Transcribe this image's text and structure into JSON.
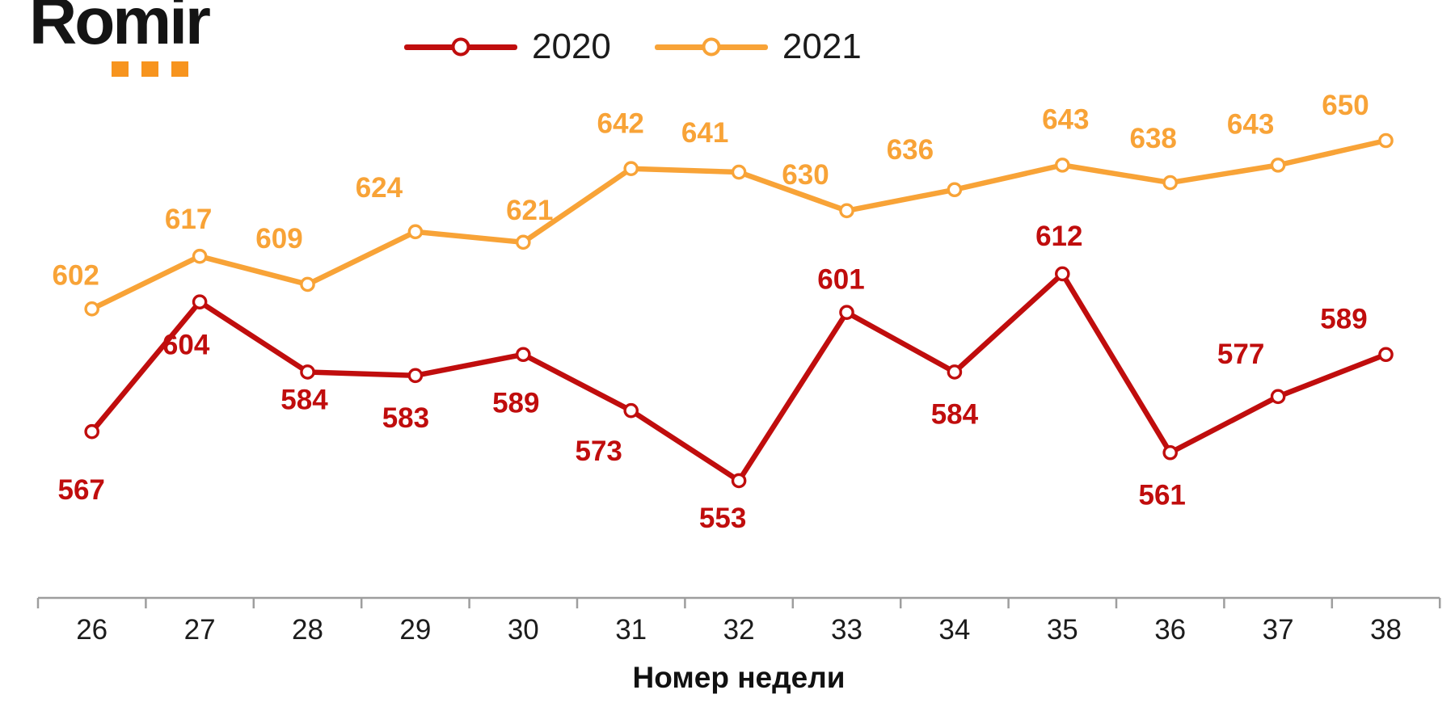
{
  "logo": {
    "text": "Romir",
    "text_color": "#141414",
    "dots_color": "#F7941E"
  },
  "legend": {
    "items": [
      {
        "label": "2020",
        "color": "#C00D0D"
      },
      {
        "label": "2021",
        "color": "#F8A337"
      }
    ]
  },
  "chart_data": {
    "type": "line",
    "title": "",
    "x": [
      26,
      27,
      28,
      29,
      30,
      31,
      32,
      33,
      34,
      35,
      36,
      37,
      38
    ],
    "xlabel": "Номер недели",
    "series": [
      {
        "name": "2020",
        "color": "#C00D0D",
        "values": [
          567,
          604,
          584,
          583,
          589,
          573,
          553,
          601,
          584,
          612,
          561,
          577,
          589
        ],
        "label_offsets": [
          [
            -13,
            72
          ],
          [
            -17,
            53
          ],
          [
            -4,
            34
          ],
          [
            -12,
            52
          ],
          [
            -9,
            60
          ],
          [
            -40,
            50
          ],
          [
            -20,
            46
          ],
          [
            -7,
            -41
          ],
          [
            0,
            52
          ],
          [
            -4,
            -47
          ],
          [
            -10,
            52
          ],
          [
            -46,
            -53
          ],
          [
            -52,
            -44
          ]
        ]
      },
      {
        "name": "2021",
        "color": "#F8A337",
        "values": [
          602,
          617,
          609,
          624,
          621,
          642,
          641,
          630,
          636,
          643,
          638,
          643,
          650
        ],
        "label_offsets": [
          [
            -20,
            -42
          ],
          [
            -14,
            -46
          ],
          [
            -35,
            -57
          ],
          [
            -45,
            -55
          ],
          [
            8,
            -40
          ],
          [
            -13,
            -56
          ],
          [
            -42,
            -49
          ],
          [
            -51,
            -45
          ],
          [
            -55,
            -50
          ],
          [
            4,
            -57
          ],
          [
            -21,
            -55
          ],
          [
            -34,
            -51
          ],
          [
            -50,
            -44
          ]
        ]
      }
    ],
    "marker": "circle-open",
    "data_labels": true,
    "grid": false,
    "legend_position": "top",
    "ylim": [
      520,
      660
    ],
    "axis_color": "#9E9E9E",
    "tick_label_color": "#1C1C1C"
  }
}
